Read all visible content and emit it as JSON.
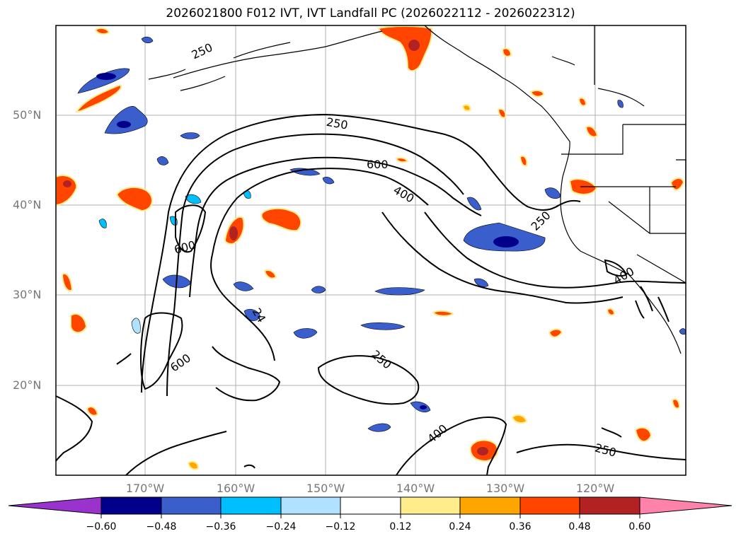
{
  "title": "2026021800 F012 IVT, IVT Landfall PC (2026022112 - 2026022312)",
  "lat_labels": [
    "50°N",
    "40°N",
    "30°N",
    "20°N"
  ],
  "lon_labels": [
    "170°W",
    "160°W",
    "150°W",
    "140°W",
    "130°W",
    "120°W"
  ],
  "contour_labels": [
    "250",
    "250",
    "250",
    "250",
    "250",
    "250",
    "600",
    "600",
    "600",
    "400",
    "400",
    "400",
    "24"
  ],
  "colorbar": {
    "ticks": [
      "−0.60",
      "−0.48",
      "−0.36",
      "−0.24",
      "−0.12",
      "0.12",
      "0.24",
      "0.36",
      "0.48",
      "0.60"
    ],
    "colors": [
      "#9a32cd",
      "#00008b",
      "#3a5fcd",
      "#00bfff",
      "#b0e2ff",
      "#ffffff",
      "#ffec8b",
      "#ffa500",
      "#ff4500",
      "#b22222",
      "#ff82ab"
    ]
  },
  "palette": {
    "very_neg": "#00008b",
    "neg": "#3a5fcd",
    "mid_neg": "#00bfff",
    "light_neg": "#b0e2ff",
    "light_pos": "#ffec8b",
    "pos": "#ffa500",
    "mid_pos": "#ff4500",
    "very_pos": "#b22222"
  }
}
